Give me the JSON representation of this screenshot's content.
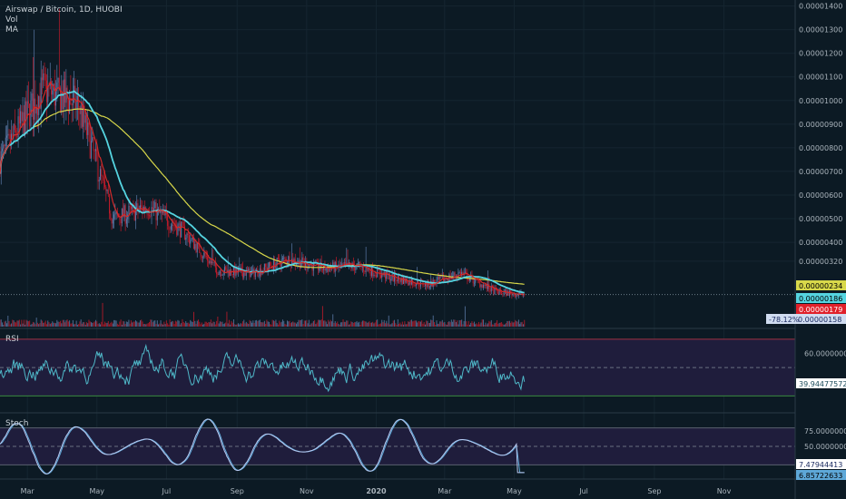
{
  "header": {
    "symbol": "Airswap / Bitcoin, 1D, HUOBI",
    "vol": "Vol",
    "ma": "MA"
  },
  "colors": {
    "background": "#0c1a24",
    "grid": "#152530",
    "candle_up": "#5b7aa8",
    "candle_down": "#c41a2a",
    "ma_fast": "#d42a2a",
    "ma_mid": "#55d4e0",
    "ma_slow": "#d8d84a",
    "rsi_line": "#4fb8c8",
    "rsi_fill": "#1f1d3c",
    "stoch_k": "#b8c8f0",
    "stoch_d": "#5ea8d8",
    "stoch_fill": "#1f1d3c"
  },
  "chart_data": [
    {
      "type": "candlestick",
      "name": "price",
      "y_ticks": [
        "0.00001400",
        "0.00001300",
        "0.00001200",
        "0.00001100",
        "0.00001000",
        "0.00000900",
        "0.00000800",
        "0.00000700",
        "0.00000600",
        "0.00000500",
        "0.00000400",
        "0.00000320"
      ],
      "ylim": [
        1.2e-06,
        1.41e-05
      ],
      "x_labels": [
        "Mar",
        "May",
        "Jul",
        "Sep",
        "Nov",
        "2020",
        "Mar",
        "May",
        "Jul",
        "Sep",
        "Nov"
      ],
      "key_points": [
        {
          "date": "2019-02",
          "close": 7.5e-06
        },
        {
          "date": "2019-03",
          "close": 1.05e-05
        },
        {
          "date": "2019-04",
          "close": 9.8e-06
        },
        {
          "date": "2019-05",
          "close": 5e-06
        },
        {
          "date": "2019-06",
          "close": 5.5e-06
        },
        {
          "date": "2019-07",
          "close": 4.5e-06
        },
        {
          "date": "2019-08",
          "close": 2.8e-06
        },
        {
          "date": "2019-09",
          "close": 2.7e-06
        },
        {
          "date": "2019-10",
          "close": 3.3e-06
        },
        {
          "date": "2019-11",
          "close": 2.9e-06
        },
        {
          "date": "2019-12",
          "close": 3e-06
        },
        {
          "date": "2020-01",
          "close": 2.5e-06
        },
        {
          "date": "2020-02",
          "close": 2.2e-06
        },
        {
          "date": "2020-03",
          "close": 2.7e-06
        },
        {
          "date": "2020-04",
          "close": 1.9e-06
        },
        {
          "date": "2020-05",
          "close": 1.79e-06
        }
      ],
      "price_labels": {
        "ma_slow": "0.00000234",
        "ma_mid": "0.00000186",
        "last": "0.00000179",
        "change": "-78.12%",
        "change_value": "0.00000158"
      }
    },
    {
      "type": "line",
      "name": "RSI",
      "y_ticks": [
        "60.00000000",
        "40.00000000"
      ],
      "ylim": [
        20,
        75
      ],
      "last_value": "39.94477572"
    },
    {
      "type": "line",
      "name": "Stoch",
      "y_ticks": [
        "75.00000000",
        "50.00000000"
      ],
      "ylim": [
        0,
        100
      ],
      "k_value": "7.47944413",
      "d_value": "6.85722633"
    }
  ]
}
